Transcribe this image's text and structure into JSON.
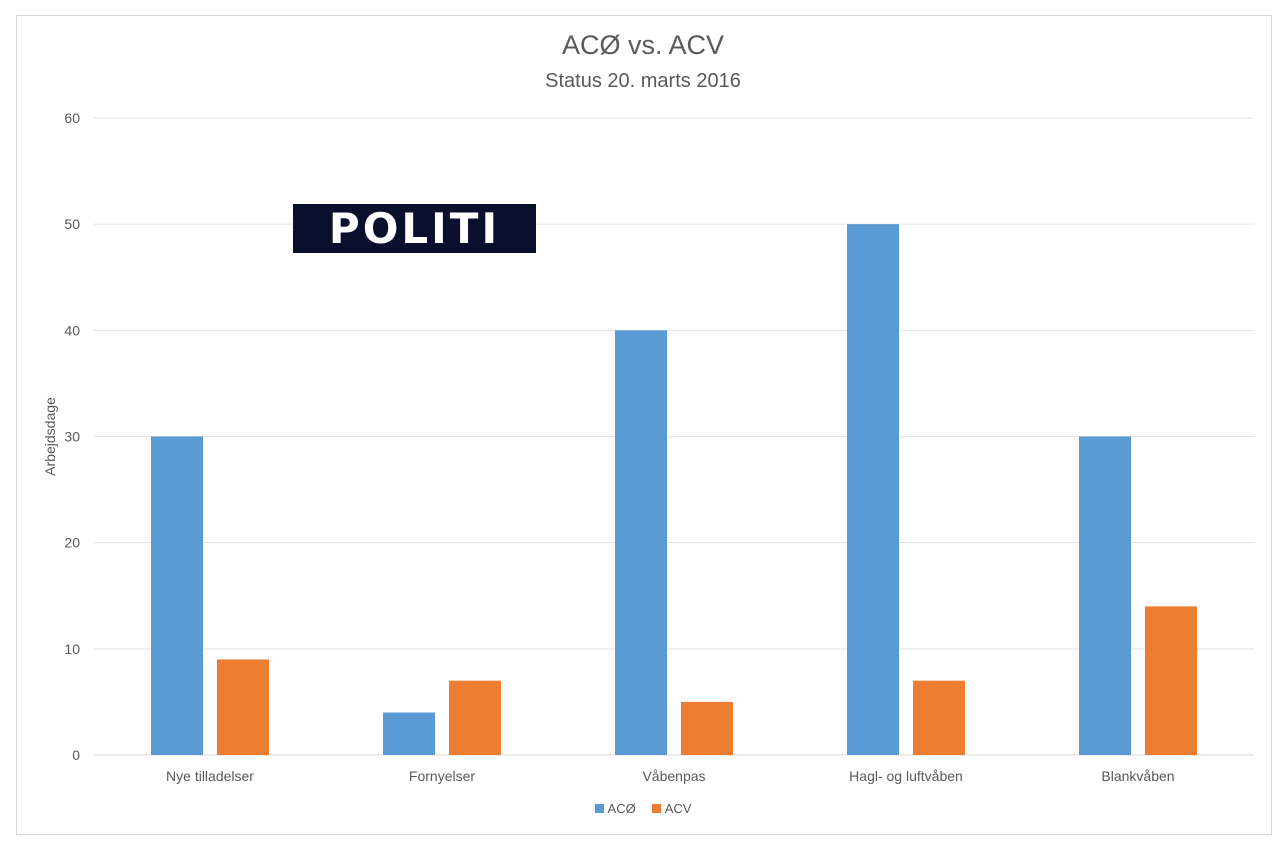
{
  "chart_data": {
    "type": "bar",
    "title": "ACØ vs. ACV",
    "subtitle": "Status 20. marts 2016",
    "ylabel": "Arbejdsdage",
    "xlabel": "",
    "ylim": [
      0,
      60
    ],
    "yticks": [
      0,
      10,
      20,
      30,
      40,
      50,
      60
    ],
    "grid": true,
    "legend_position": "bottom",
    "categories": [
      "Nye tilladelser",
      "Fornyelser",
      "Våbenpas",
      "Hagl- og luftvåben",
      "Blankvåben"
    ],
    "series": [
      {
        "name": "ACØ",
        "color": "#5b9bd5",
        "values": [
          30,
          4,
          40,
          50,
          30
        ]
      },
      {
        "name": "ACV",
        "color": "#ed7d31",
        "values": [
          9,
          7,
          5,
          7,
          14
        ]
      }
    ]
  },
  "logo": {
    "text": "POLITI"
  }
}
